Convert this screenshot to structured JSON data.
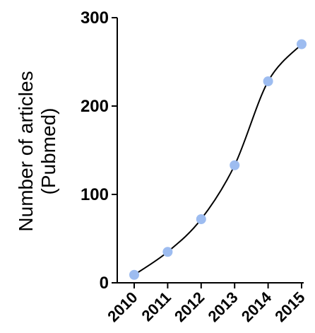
{
  "chart_data": {
    "type": "line",
    "x": [
      "2010",
      "2011",
      "2012",
      "2013",
      "2014",
      "2015"
    ],
    "values": [
      9,
      35,
      72,
      133,
      228,
      270
    ],
    "ylabel_line1": "Number of articles",
    "ylabel_line2": "(Pubmed)",
    "xlabel": "",
    "ylim": [
      0,
      300
    ],
    "yticks": [
      "0",
      "100",
      "200",
      "300"
    ],
    "grid": false,
    "marker_color": "#9dbcf0",
    "line_color": "#000000"
  }
}
